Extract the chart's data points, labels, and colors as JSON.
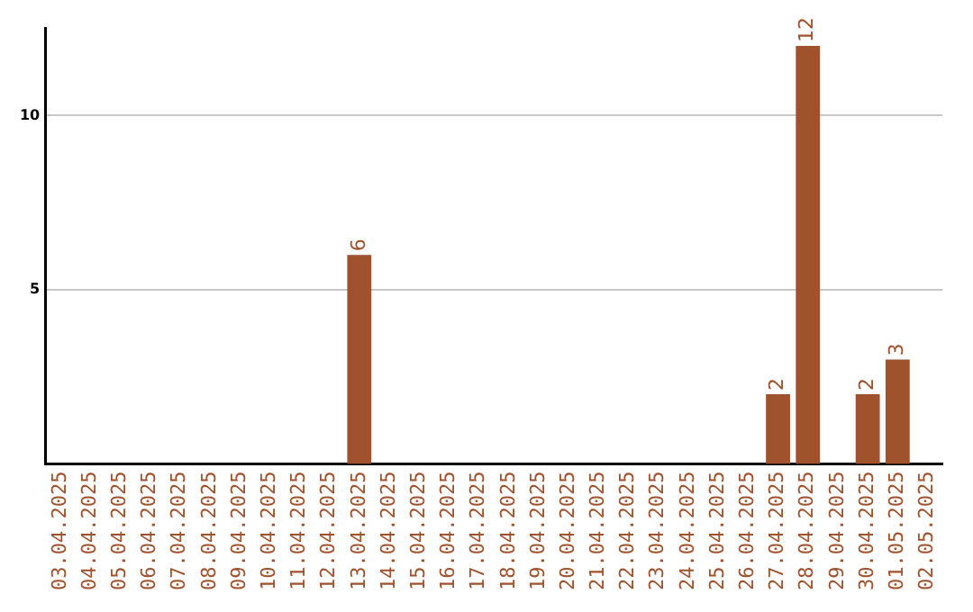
{
  "chart_data": {
    "type": "bar",
    "categories": [
      "03.04.2025",
      "04.04.2025",
      "05.04.2025",
      "06.04.2025",
      "07.04.2025",
      "08.04.2025",
      "09.04.2025",
      "10.04.2025",
      "11.04.2025",
      "12.04.2025",
      "13.04.2025",
      "14.04.2025",
      "15.04.2025",
      "16.04.2025",
      "17.04.2025",
      "18.04.2025",
      "19.04.2025",
      "20.04.2025",
      "21.04.2025",
      "22.04.2025",
      "23.04.2025",
      "24.04.2025",
      "25.04.2025",
      "26.04.2025",
      "27.04.2025",
      "28.04.2025",
      "29.04.2025",
      "30.04.2025",
      "01.05.2025",
      "02.05.2025"
    ],
    "values": [
      0,
      0,
      0,
      0,
      0,
      0,
      0,
      0,
      0,
      0,
      6,
      0,
      0,
      0,
      0,
      0,
      0,
      0,
      0,
      0,
      0,
      0,
      0,
      0,
      2,
      12,
      0,
      2,
      3,
      0
    ],
    "value_labels": [
      null,
      null,
      null,
      null,
      null,
      null,
      null,
      null,
      null,
      null,
      "6",
      null,
      null,
      null,
      null,
      null,
      null,
      null,
      null,
      null,
      null,
      null,
      null,
      null,
      "2",
      "12",
      null,
      "2",
      "3",
      null
    ],
    "color": "#a0522d",
    "ylim": [
      0,
      12.5
    ],
    "yticks": [
      5,
      10
    ],
    "grid": "y",
    "legend": false
  }
}
